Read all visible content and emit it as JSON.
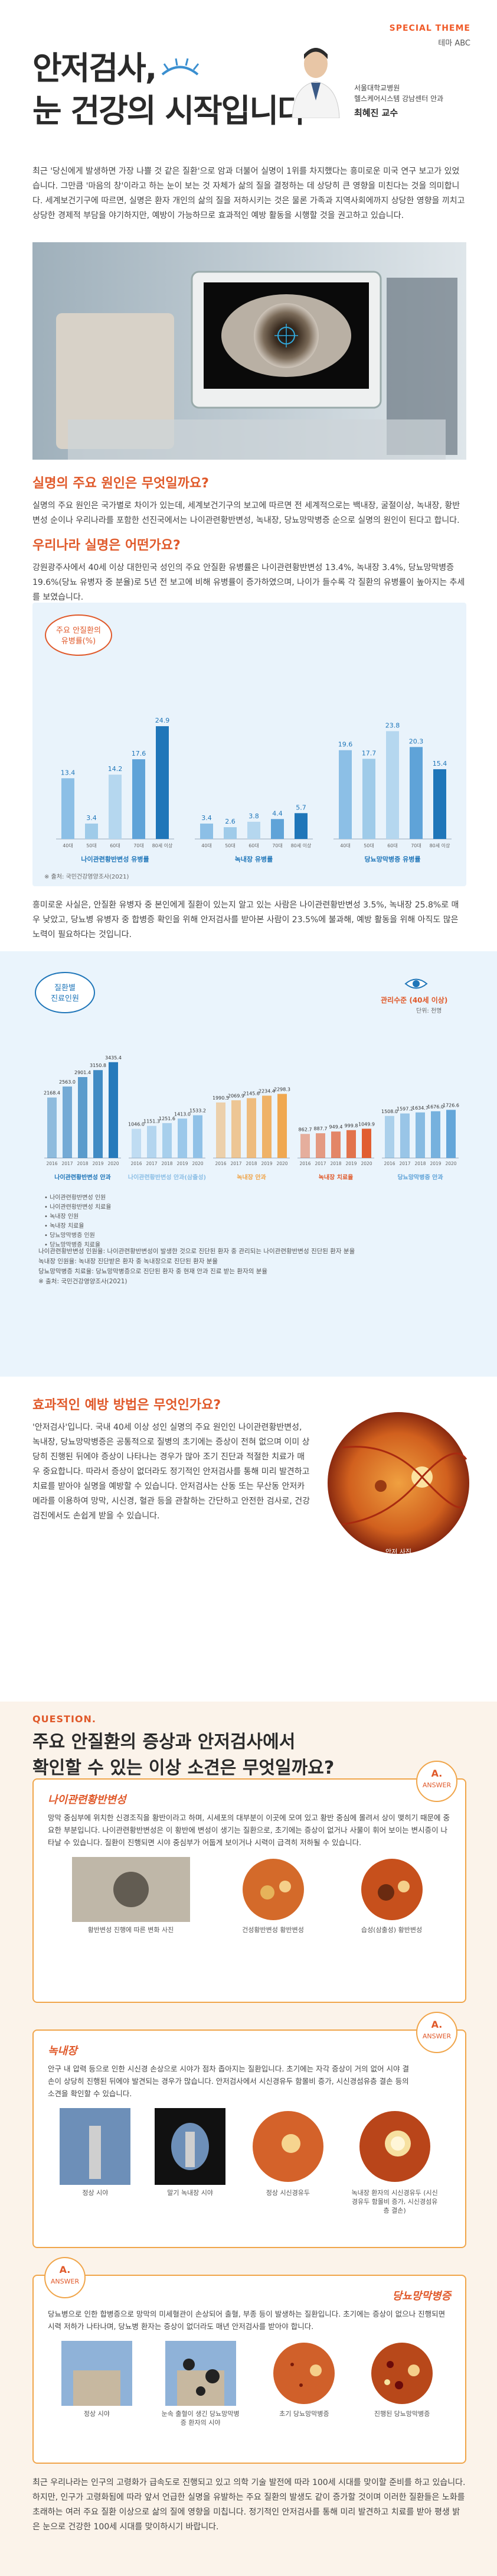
{
  "header": {
    "special_theme": "SPECIAL THEME",
    "section": "테마 ABC",
    "title_line1": "안저검사,",
    "title_line2": "눈 건강의 시작입니다",
    "author_affiliation_1": "서울대학교병원",
    "author_affiliation_2": "헬스케어시스템 강남센터 안과",
    "author_name": "최혜진 교수"
  },
  "intro": "최근 '당신에게 발생하면 가장 나쁠 것 같은 질환'으로 암과 더불어 실명이 1위를 차지했다는 흥미로운 미국 연구 보고가 있었습니다. 그만큼 '마음의 창'이라고 하는 눈이 보는 것 자체가 삶의 질을 결정하는 데 상당히 큰 영향을 미친다는 것을 의미합니다. 세계보건기구에 따르면, 실명은 환자 개인의 삶의 질을 저하시키는 것은 물론 가족과 지역사회에까지 상당한 영향을 끼치고 상당한 경제적 부담을 야기하지만, 예방이 가능하므로 효과적인 예방 활동을 시행할 것을 권고하고 있습니다.",
  "section1": {
    "title": "실명의 주요 원인은 무엇일까요?",
    "body": "실명의 주요 원인은 국가별로 차이가 있는데, 세계보건기구의 보고에 따르면 전 세계적으로는 백내장, 굴절이상, 녹내장, 황반변성 순이나 우리나라를 포함한 선진국에서는 나이관련황반변성, 녹내장, 당뇨망막병증 순으로 실명의 원인이 된다고 합니다."
  },
  "section2": {
    "title": "우리나라 실명은 어떤가요?",
    "body": "강원광주사에서 40세 이상 대한민국 성인의 주요 안질환 유병률은 나이관련황반변성 13.4%, 녹내장 3.4%, 당뇨망막병증 19.6%(당뇨 유병자 중 분율)로 5년 전 보고에 비해 유병률이 증가하였으며, 나이가 들수록 각 질환의 유병률이 높아지는 추세를 보였습니다."
  },
  "chart1": {
    "badge_line1": "주요 안질환의",
    "badge_line2": "유병률(%)",
    "source": "※ 출처: 국민건강영양조사(2021)"
  },
  "chart_data": [
    {
      "type": "bar",
      "categories": [
        "40대",
        "50대",
        "60대",
        "70대",
        "80세 이상"
      ],
      "series": [
        {
          "name": "나이관련황반변성 유병률",
          "values": [
            13.4,
            3.4,
            14.2,
            17.6,
            24.9
          ]
        },
        {
          "name": "녹내장 유병률",
          "values": [
            3.4,
            2.6,
            3.8,
            4.4,
            5.7
          ]
        },
        {
          "name": "당뇨망막병증 유병률",
          "values": [
            19.6,
            17.7,
            23.8,
            20.3,
            15.4
          ]
        }
      ],
      "title": "주요 안질환의 유병률(%)"
    },
    {
      "type": "bar",
      "categories": [
        "2016",
        "2017",
        "2018",
        "2019",
        "2020"
      ],
      "series": [
        {
          "name": "나이관련황반변성 안과",
          "values": [
            2168.4,
            2563.0,
            2901.4,
            3150.8,
            3435.4
          ]
        },
        {
          "name": "나이관련황반변성 안과(삼출성)",
          "values": [
            1046.0,
            1151.3,
            1251.6,
            1413.0,
            1533.2
          ]
        },
        {
          "name": "녹내장 안과",
          "values": [
            1990.5,
            2069.9,
            2145.6,
            2234.4,
            2298.3
          ]
        },
        {
          "name": "녹내장 치료율",
          "values": [
            862.7,
            887.7,
            949.4,
            999.8,
            1049.9
          ]
        },
        {
          "name": "당뇨망막병증 안과",
          "values": [
            1508.0,
            1597.2,
            1634.7,
            1676.0,
            1726.6
          ]
        }
      ],
      "title": "관리수준 (40세 이상)",
      "ylabel": "단위: 천명"
    }
  ],
  "section3": {
    "body": "흥미로운 사실은, 안질환 유병자 중 본인에게 질환이 있는지 알고 있는 사람은 나이관련황반변성 3.5%, 녹내장 25.8%로 매우 낮았고, 당뇨병 유병자 중 합병증 확인을 위해 안저검사를 받아본 사람이 23.5%에 불과해, 예방 활동을 위해 아직도 많은 노력이 필요하다는 것입니다."
  },
  "chart2": {
    "badge_line1": "질환별",
    "badge_line2": "진료인원",
    "legend": "관리수준 (40세 이상)",
    "unit": "단위: 천명",
    "groups": [
      "나이관련황반변성 인원",
      "나이관련황반변성 치료율",
      "녹내장 인원",
      "녹내장 치료율",
      "당뇨망막병증 인원",
      "당뇨망막병증 치료율"
    ],
    "notes": [
      "나이관련황반변성 인원율: 나이관련황반변성이 발생한 것으로 진단된 환자 중 관리되는 나이관련황반변성 진단된 환자 분율",
      "녹내장 인원율: 녹내장 진단받은 환자 중 녹내장으로 진단된 환자 분율",
      "당뇨망막병증 치료율: 당뇨망막병증으로 진단된 환자 중 현재 안과 진료 받는 환자의 분율",
      "※ 출처: 국민건강영양조사(2021)"
    ]
  },
  "section4": {
    "title": "효과적인 예방 방법은 무엇인가요?",
    "body": "'안저검사'입니다. 국내 40세 이상 성인 실명의 주요 원인인 나이관련황반변성, 녹내장, 당뇨망막병증은 공통적으로 질병의 초기에는 증상이 전혀 없으며 이미 상당히 진행된 뒤에야 증상이 나타나는 경우가 많아 조기 진단과 적절한 치료가 매우 중요합니다. 따라서 증상이 없더라도 정기적인 안저검사를 통해 미리 발견하고 치료를 받아야 실명을 예방할 수 있습니다. 안저검사는 산동 또는 무산동 안저카메라를 이용하여 망막, 시신경, 혈관 등을 관찰하는 간단하고 안전한 검사로, 건강검진에서도 손쉽게 받을 수 있습니다."
  },
  "fundus_label": "안저 사진",
  "question": {
    "label": "QUESTION.",
    "title_line1": "주요 안질환의 증상과 안저검사에서",
    "title_line2": "확인할 수 있는 이상 소견은 무엇일까요?"
  },
  "answers": [
    {
      "badge": "ANSWER",
      "title": "나이관련황반변성",
      "body": "망막 중심부에 위치한 신경조직을 황반이라고 하며, 시세포의 대부분이 이곳에 모여 있고 황반 중심에 몰려서 상이 맺히기 때문에 중요한 부분입니다. 나이관련황반변성은 이 황반에 변성이 생기는 질환으로, 초기에는 증상이 없거나 사물이 휘어 보이는 변시증이 나타날 수 있습니다. 질환이 진행되면 시야 중심부가 어둡게 보이거나 시력이 급격히 저하될 수 있습니다.",
      "captions": [
        "황반변성 진행에 따른 변화 사진",
        "건성황반변성 황반변성",
        "습성(삼출성) 황반변성"
      ]
    },
    {
      "badge": "ANSWER",
      "title": "녹내장",
      "body": "안구 내 압력 등으로 인한 시신경 손상으로 시야가 점차 좁아지는 질환입니다. 초기에는 자각 증상이 거의 없어 시야 결손이 상당히 진행된 뒤에야 발견되는 경우가 많습니다. 안저검사에서 시신경유두 함몰비 증가, 시신경섬유층 결손 등의 소견을 확인할 수 있습니다.",
      "captions": [
        "정상 시야",
        "말기 녹내장 시야",
        "정상 시신경유두",
        "녹내장 환자의 시신경유두 (시신경유두 함몰비 증가, 시신경섬유층 결손)"
      ]
    },
    {
      "badge": "ANSWER",
      "title": "당뇨망막병증",
      "body": "당뇨병으로 인한 합병증으로 망막의 미세혈관이 손상되어 출혈, 부종 등이 발생하는 질환입니다. 초기에는 증상이 없으나 진행되면 시력 저하가 나타나며, 당뇨병 환자는 증상이 없더라도 매년 안저검사를 받아야 합니다.",
      "captions": [
        "정상 시야",
        "눈속 출혈이 생긴 당뇨망막병증 환자의 시야",
        "초기 당뇨망막병증",
        "진행된 당뇨망막병증"
      ]
    }
  ],
  "closing": "최근 우리나라는 인구의 고령화가 급속도로 진행되고 있고 의학 기술 발전에 따라 100세 시대를 맞이할 준비를 하고 있습니다. 하지만, 인구가 고령화됨에 따라 앞서 언급한 실명을 유발하는 주요 질환의 발생도 같이 증가할 것이며 이러한 질환들은 노화를 초래하는 여러 주요 질환 이상으로 삶의 질에 영향을 미칩니다. 정기적인 안저검사를 통해 미리 발견하고 치료를 받아 평생 밝은 눈으로 건강한 100세 시대를 맞이하시기 바랍니다."
}
